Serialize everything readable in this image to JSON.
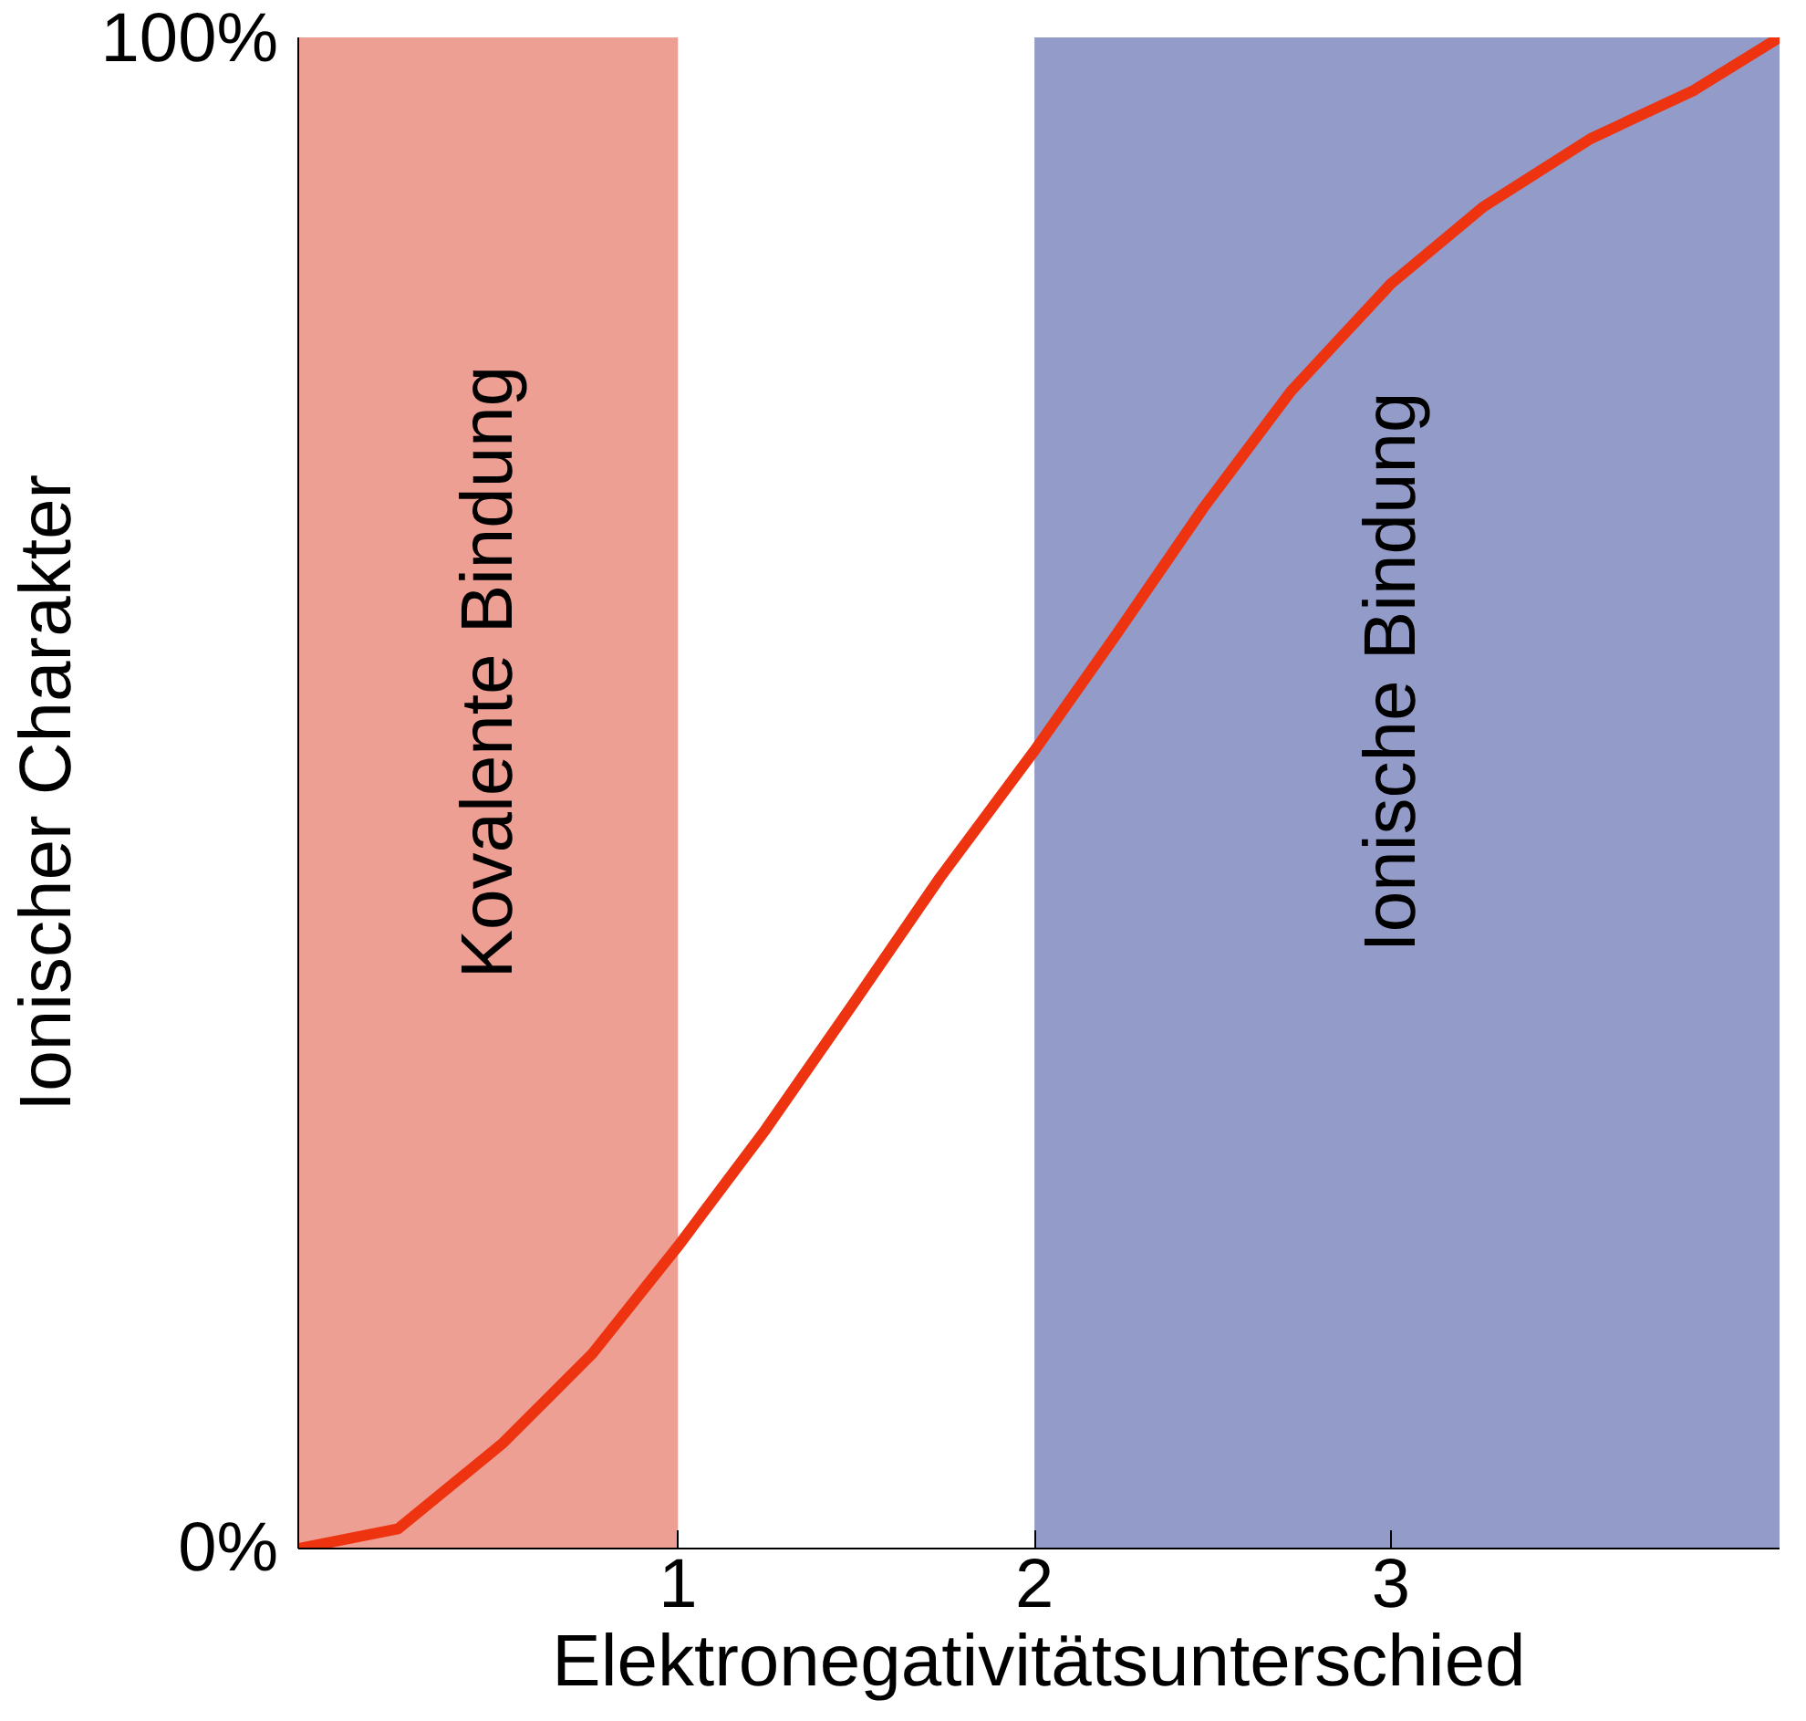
{
  "chart_data": {
    "type": "line",
    "xlabel": "Elektronegativitätsunterschied",
    "ylabel": "Ionischer Charakter",
    "x": [
      -0.065,
      0.215,
      0.51,
      0.76,
      1.0,
      1.245,
      1.49,
      1.735,
      2.0,
      2.23,
      2.475,
      2.72,
      3.0,
      3.26,
      3.56,
      3.85,
      4.09
    ],
    "series": [
      {
        "color": "#ee3311",
        "values": [
          0,
          1.3,
          7,
          12.9,
          20,
          27.7,
          36,
          44.4,
          52.8,
          60.5,
          68.9,
          76.6,
          83.7,
          88.8,
          93.3,
          96.5,
          100
        ]
      }
    ],
    "xlim": [
      -0.065,
      4.09
    ],
    "ylim": [
      0,
      100
    ],
    "xticks": [
      1,
      2,
      3
    ],
    "yticks": [
      {
        "value": 0,
        "label": "0%"
      },
      {
        "value": 100,
        "label": "100%"
      }
    ],
    "bands": [
      {
        "axis": "x",
        "from": -0.065,
        "to": 1,
        "label": "Kovalente Bindung",
        "color": "#e0503a"
      },
      {
        "axis": "x",
        "from": 2,
        "to": 4.09,
        "label": "Ionische Bindung",
        "color": "#3a4a9a"
      }
    ],
    "grid": false,
    "marker": "none",
    "line_style": "solid"
  }
}
